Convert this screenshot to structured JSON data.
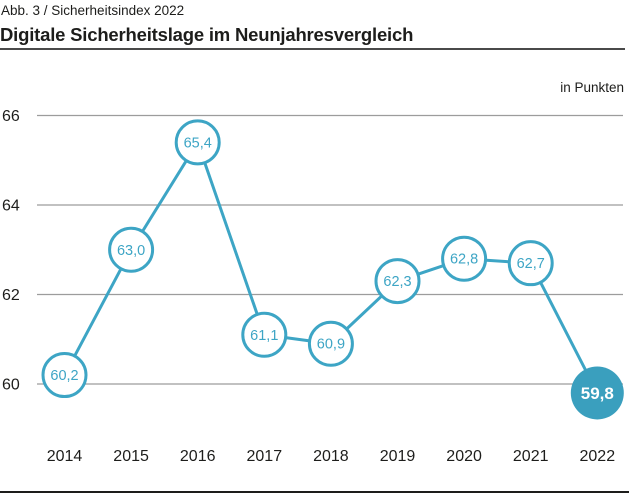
{
  "header": {
    "kicker": "Abb. 3 / Sicherheitsindex 2022",
    "title": "Digitale Sicherheitslage im Neunjahresvergleich",
    "unit_label": "in Punkten"
  },
  "colors": {
    "accent": "#3da5c5",
    "accent_fill": "#3a9fbe",
    "grid": "#9c9c9c",
    "text": "#1d1d1b",
    "rule_top": "#4a4a4a",
    "rule_bottom": "#1d1d1b"
  },
  "chart_data": {
    "type": "line",
    "title": "Digitale Sicherheitslage im Neunjahresvergleich",
    "subtitle": "Abb. 3 / Sicherheitsindex 2022",
    "unit": "in Punkten",
    "categories": [
      "2014",
      "2015",
      "2016",
      "2017",
      "2018",
      "2019",
      "2020",
      "2021",
      "2022"
    ],
    "values": [
      60.2,
      63.0,
      65.4,
      61.1,
      60.9,
      62.3,
      62.8,
      62.7,
      59.8
    ],
    "labels": [
      "60,2",
      "63,0",
      "65,4",
      "61,1",
      "60,9",
      "62,3",
      "62,8",
      "62,7",
      "59,8"
    ],
    "highlight_index": 8,
    "yticks": [
      66,
      64,
      62,
      60
    ],
    "ylim": [
      59.2,
      66.6
    ],
    "grid": true,
    "legend": "none",
    "series_color": "#3da5c5",
    "highlight_color": "#3a9fbe",
    "grid_color": "#9c9c9c",
    "text_color": "#1d1d1b"
  }
}
